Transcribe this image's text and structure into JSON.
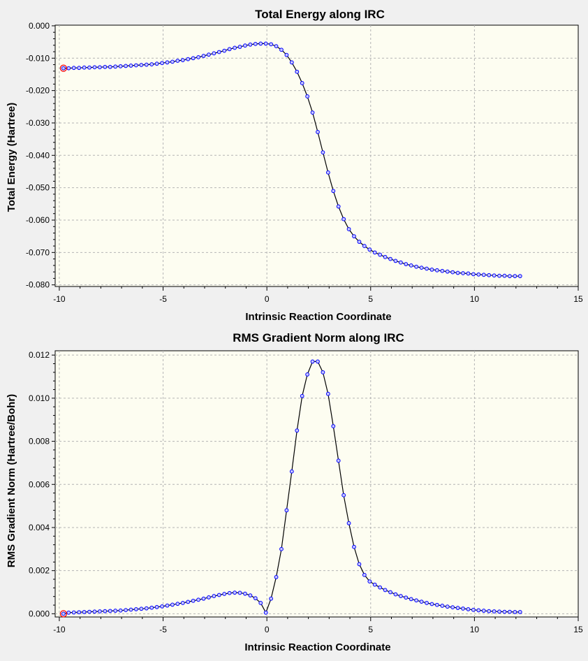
{
  "chart_data": [
    {
      "type": "line",
      "title": "Total Energy along IRC",
      "xlabel": "Intrinsic Reaction Coordinate",
      "ylabel": "Total Energy (Hartree)",
      "xlim": [
        -10.2,
        15
      ],
      "ylim": [
        -0.0805,
        0.0002
      ],
      "xticks": [
        -10,
        -5,
        0,
        5,
        10,
        15
      ],
      "xtick_labels": [
        "-10",
        "-5",
        "0",
        "5",
        "10",
        "15"
      ],
      "yticks": [
        0,
        -0.01,
        -0.02,
        -0.03,
        -0.04,
        -0.05,
        -0.06,
        -0.07,
        -0.08
      ],
      "ytick_labels": [
        "0.000",
        "-0.010",
        "-0.020",
        "-0.030",
        "-0.040",
        "-0.050",
        "-0.060",
        "-0.070",
        "-0.080"
      ],
      "grid": true,
      "legend": "none",
      "highlight_x": -9.8,
      "colors": {
        "background": "#fdfdf1",
        "line": "#000000",
        "marker": "#0000ff",
        "marker_fill": "#c8c8ff",
        "highlight": "#ff0000"
      },
      "series": [
        {
          "x": [
            -9.8,
            -9.55,
            -9.3,
            -9.05,
            -8.8,
            -8.55,
            -8.3,
            -8.05,
            -7.8,
            -7.55,
            -7.3,
            -7.05,
            -6.8,
            -6.55,
            -6.3,
            -6.05,
            -5.8,
            -5.55,
            -5.3,
            -5.05,
            -4.8,
            -4.55,
            -4.3,
            -4.05,
            -3.8,
            -3.55,
            -3.3,
            -3.05,
            -2.8,
            -2.55,
            -2.3,
            -2.05,
            -1.8,
            -1.55,
            -1.3,
            -1.05,
            -0.8,
            -0.55,
            -0.3,
            -0.05,
            0.2,
            0.45,
            0.7,
            0.95,
            1.2,
            1.45,
            1.7,
            1.95,
            2.2,
            2.45,
            2.7,
            2.95,
            3.2,
            3.45,
            3.7,
            3.95,
            4.2,
            4.45,
            4.7,
            4.95,
            5.2,
            5.45,
            5.7,
            5.95,
            6.2,
            6.45,
            6.7,
            6.95,
            7.2,
            7.45,
            7.7,
            7.95,
            8.2,
            8.45,
            8.7,
            8.95,
            9.2,
            9.45,
            9.7,
            9.95,
            10.2,
            10.45,
            10.7,
            10.95,
            11.2,
            11.45,
            11.7,
            11.95,
            12.2
          ],
          "y": [
            -0.0131,
            -0.0131,
            -0.013,
            -0.013,
            -0.0129,
            -0.0129,
            -0.0128,
            -0.0128,
            -0.0127,
            -0.0127,
            -0.0126,
            -0.0125,
            -0.0124,
            -0.0123,
            -0.0122,
            -0.0121,
            -0.012,
            -0.0119,
            -0.0117,
            -0.0115,
            -0.0113,
            -0.0111,
            -0.0108,
            -0.0106,
            -0.0103,
            -0.01,
            -0.0097,
            -0.0093,
            -0.0089,
            -0.0085,
            -0.0081,
            -0.0077,
            -0.0072,
            -0.0068,
            -0.0065,
            -0.0061,
            -0.0058,
            -0.0056,
            -0.0055,
            -0.0055,
            -0.0057,
            -0.0063,
            -0.0074,
            -0.009,
            -0.0113,
            -0.0142,
            -0.0177,
            -0.0218,
            -0.0268,
            -0.0328,
            -0.0391,
            -0.0453,
            -0.051,
            -0.0558,
            -0.0597,
            -0.0628,
            -0.065,
            -0.0667,
            -0.068,
            -0.0691,
            -0.07,
            -0.0707,
            -0.0714,
            -0.072,
            -0.0726,
            -0.0731,
            -0.0736,
            -0.074,
            -0.0744,
            -0.0747,
            -0.075,
            -0.0753,
            -0.0755,
            -0.0757,
            -0.0759,
            -0.0761,
            -0.0763,
            -0.0764,
            -0.0765,
            -0.0767,
            -0.0768,
            -0.0769,
            -0.077,
            -0.0771,
            -0.0772,
            -0.0772,
            -0.0773,
            -0.0773,
            -0.0773
          ]
        }
      ]
    },
    {
      "type": "line",
      "title": "RMS Gradient Norm along IRC",
      "xlabel": "Intrinsic Reaction Coordinate",
      "ylabel": "RMS Gradient Norm (Hartree/Bohr)",
      "xlim": [
        -10.2,
        15
      ],
      "ylim": [
        -0.00015,
        0.0122
      ],
      "xticks": [
        -10,
        -5,
        0,
        5,
        10,
        15
      ],
      "xtick_labels": [
        "-10",
        "-5",
        "0",
        "5",
        "10",
        "15"
      ],
      "yticks": [
        0,
        0.002,
        0.004,
        0.006,
        0.008,
        0.01,
        0.012
      ],
      "ytick_labels": [
        "0.000",
        "0.002",
        "0.004",
        "0.006",
        "0.008",
        "0.010",
        "0.012"
      ],
      "grid": true,
      "legend": "none",
      "highlight_x": -9.8,
      "colors": {
        "background": "#fdfdf1",
        "line": "#000000",
        "marker": "#0000ff",
        "marker_fill": "#c8c8ff",
        "highlight": "#ff0000"
      },
      "series": [
        {
          "x": [
            -9.8,
            -9.55,
            -9.3,
            -9.05,
            -8.8,
            -8.55,
            -8.3,
            -8.05,
            -7.8,
            -7.55,
            -7.3,
            -7.05,
            -6.8,
            -6.55,
            -6.3,
            -6.05,
            -5.8,
            -5.55,
            -5.3,
            -5.05,
            -4.8,
            -4.55,
            -4.3,
            -4.05,
            -3.8,
            -3.55,
            -3.3,
            -3.05,
            -2.8,
            -2.55,
            -2.3,
            -2.05,
            -1.8,
            -1.55,
            -1.3,
            -1.05,
            -0.8,
            -0.55,
            -0.3,
            -0.05,
            0.2,
            0.45,
            0.7,
            0.95,
            1.2,
            1.45,
            1.7,
            1.95,
            2.2,
            2.45,
            2.7,
            2.95,
            3.2,
            3.45,
            3.7,
            3.95,
            4.2,
            4.45,
            4.7,
            4.95,
            5.2,
            5.45,
            5.7,
            5.95,
            6.2,
            6.45,
            6.7,
            6.95,
            7.2,
            7.45,
            7.7,
            7.95,
            8.2,
            8.45,
            8.7,
            8.95,
            9.2,
            9.45,
            9.7,
            9.95,
            10.2,
            10.45,
            10.7,
            10.95,
            11.2,
            11.45,
            11.7,
            11.95,
            12.2
          ],
          "y": [
            0.0,
            5e-05,
            6e-05,
            7e-05,
            8e-05,
            9e-05,
            0.0001,
            0.00011,
            0.00012,
            0.00013,
            0.00014,
            0.00015,
            0.00017,
            0.00019,
            0.00021,
            0.00023,
            0.00025,
            0.00028,
            0.00031,
            0.00034,
            0.00038,
            0.00042,
            0.00046,
            0.0005,
            0.00055,
            0.0006,
            0.00065,
            0.0007,
            0.00076,
            0.00082,
            0.00087,
            0.00092,
            0.00096,
            0.00098,
            0.00097,
            0.00093,
            0.00085,
            0.00072,
            0.0005,
            5e-05,
            0.0007,
            0.0017,
            0.003,
            0.0048,
            0.0066,
            0.0085,
            0.0101,
            0.0111,
            0.0117,
            0.0117,
            0.0112,
            0.0102,
            0.0087,
            0.0071,
            0.0055,
            0.0042,
            0.0031,
            0.0023,
            0.0018,
            0.0015,
            0.00135,
            0.00122,
            0.0011,
            0.001,
            0.0009,
            0.00082,
            0.00075,
            0.00068,
            0.00062,
            0.00056,
            0.0005,
            0.00045,
            0.00041,
            0.00037,
            0.00033,
            0.0003,
            0.00027,
            0.00024,
            0.00021,
            0.00018,
            0.00016,
            0.00014,
            0.00012,
            0.00011,
            0.0001,
            9e-05,
            9e-05,
            8e-05,
            8e-05
          ]
        }
      ]
    }
  ]
}
